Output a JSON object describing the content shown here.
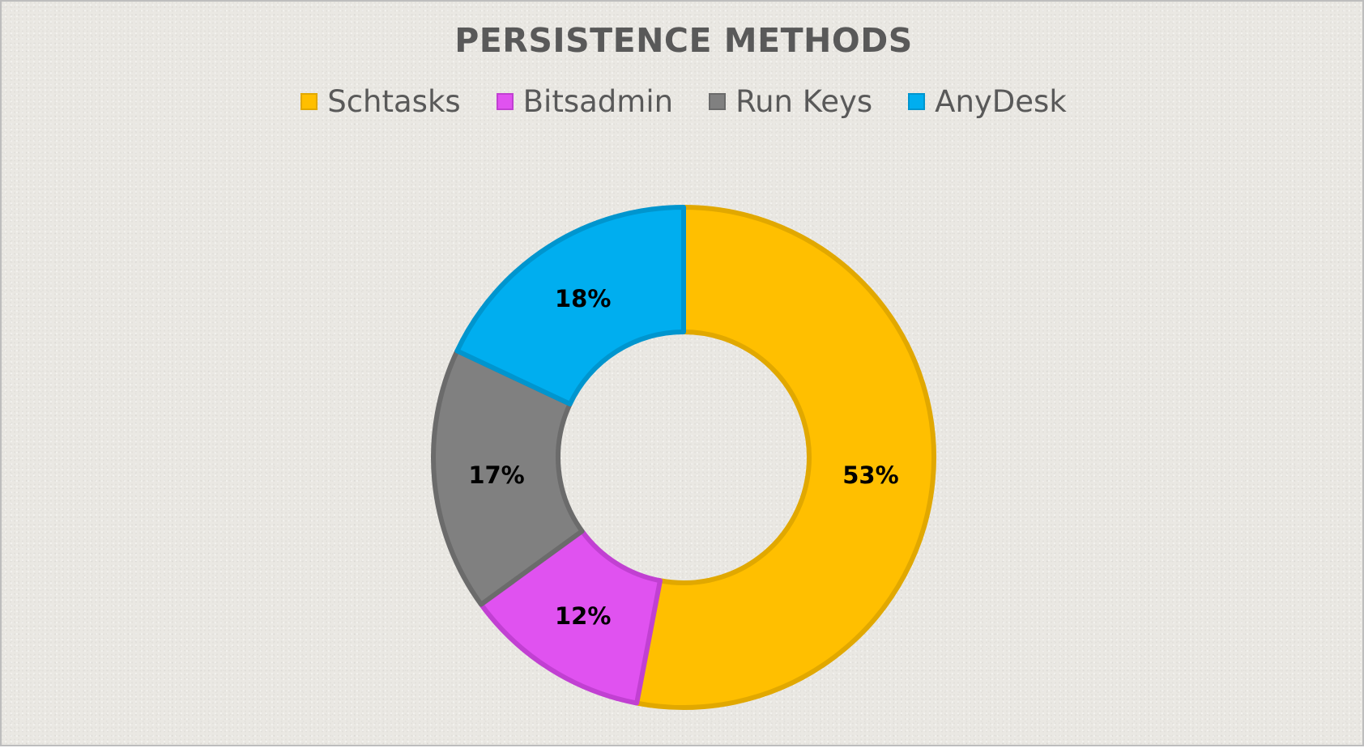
{
  "chart_data": {
    "type": "pie",
    "title": "PERSISTENCE METHODS",
    "donut": true,
    "legend_position": "top",
    "categories": [
      "Schtasks",
      "Bitsadmin",
      "Run Keys",
      "AnyDesk"
    ],
    "values": [
      53,
      12,
      17,
      18
    ],
    "labels": [
      "53%",
      "12%",
      "17%",
      "18%"
    ],
    "colors": [
      "#FFBF00",
      "#E052F0",
      "#808080",
      "#00AEEF"
    ],
    "border_colors": [
      "#E1A800",
      "#C140D2",
      "#6B6B6B",
      "#0095CE"
    ]
  }
}
